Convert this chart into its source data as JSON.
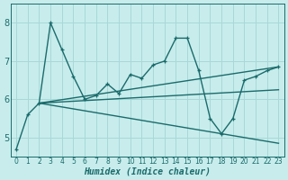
{
  "bg_color": "#c8ecec",
  "line_color": "#1a6b6b",
  "grid_color": "#a8d8d8",
  "xlabel": "Humidex (Indice chaleur)",
  "ylim": [
    4.5,
    8.5
  ],
  "xlim": [
    -0.5,
    23.5
  ],
  "yticks": [
    5,
    6,
    7,
    8
  ],
  "xtick_positions": [
    0,
    1,
    2,
    3,
    4,
    5,
    6,
    7,
    8,
    9,
    10,
    11,
    12,
    13,
    14,
    15,
    16,
    17,
    18,
    19,
    20,
    21,
    22,
    23
  ],
  "xtick_labels": [
    "0",
    "1",
    "2",
    "3",
    "4",
    "5",
    "6",
    "7",
    "8",
    "9",
    "10",
    "11",
    "12",
    "13",
    "14",
    "15",
    "16",
    "17",
    "18",
    "19",
    "20",
    "21",
    "22",
    "23"
  ],
  "main_x": [
    0,
    1,
    2,
    3,
    4,
    5,
    6,
    7,
    8,
    9,
    10,
    11,
    12,
    13,
    14,
    15,
    16,
    17,
    18,
    19,
    20,
    21,
    22,
    23
  ],
  "main_y": [
    4.7,
    5.6,
    5.9,
    8.0,
    7.3,
    6.6,
    6.0,
    6.1,
    6.4,
    6.15,
    6.65,
    6.55,
    6.9,
    7.0,
    7.6,
    7.6,
    6.75,
    5.5,
    5.1,
    5.5,
    6.5,
    6.6,
    6.75,
    6.85
  ],
  "trend_lines": [
    {
      "x0": 2,
      "y0": 5.9,
      "x1": 23,
      "y1": 6.85
    },
    {
      "x0": 2,
      "y0": 5.9,
      "x1": 23,
      "y1": 6.25
    },
    {
      "x0": 2,
      "y0": 5.9,
      "x1": 23,
      "y1": 4.85
    }
  ],
  "marker": "+",
  "linewidth": 1.0,
  "markersize": 3.5,
  "xlabel_fontsize": 7,
  "tick_fontsize_x": 5.5,
  "tick_fontsize_y": 7
}
